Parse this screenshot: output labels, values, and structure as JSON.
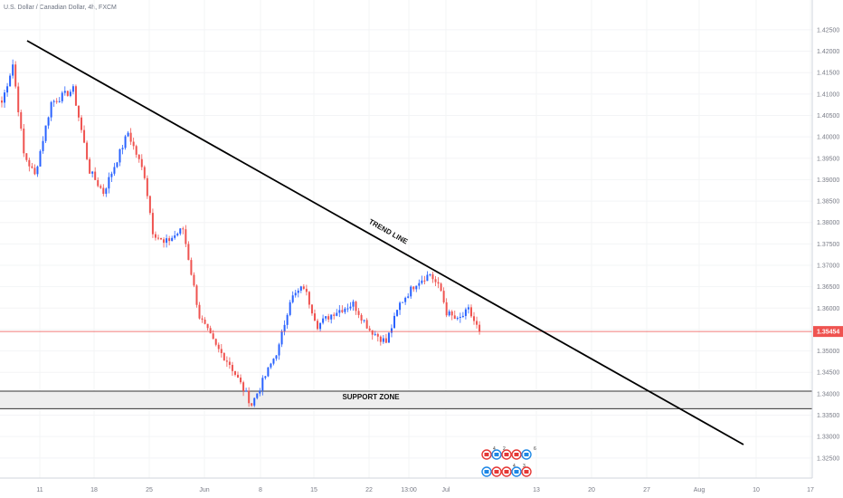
{
  "title": "U.S. Dollar / Canadian Dollar, 4h, FXCM",
  "colors": {
    "up": "#2962ff",
    "down": "#ef5350",
    "trend_line": "#000000",
    "current_price_line": "#ef5350",
    "support_fill": "#eeeeee",
    "support_border": "#333333",
    "axis_text": "#787b86"
  },
  "annotations": {
    "trend_line_label": "TREND LINE",
    "support_zone_label": "SUPPORT ZONE",
    "current_price": "1.35454"
  },
  "event_badges": [
    {
      "label": "4"
    },
    {
      "label": "2"
    },
    {
      "label": "6"
    },
    {
      "label": "4"
    },
    {
      "label": "3"
    }
  ],
  "chart_data": {
    "type": "candlestick",
    "symbol": "U.S. Dollar / Canadian Dollar",
    "interval": "4h",
    "source": "FXCM",
    "x_tick_labels": [
      "11",
      "18",
      "25",
      "Jun",
      "8",
      "15",
      "22",
      "13:00",
      "Jul",
      "13",
      "20",
      "27",
      "Aug",
      "10",
      "17"
    ],
    "y_ticks": [
      "1.42500",
      "1.42000",
      "1.41500",
      "1.41000",
      "1.40500",
      "1.40000",
      "1.39500",
      "1.39000",
      "1.38500",
      "1.38000",
      "1.37500",
      "1.37000",
      "1.36500",
      "1.36000",
      "1.35500",
      "1.35000",
      "1.34500",
      "1.34000",
      "1.33500",
      "1.33000",
      "1.32500"
    ],
    "ylim": [
      1.322,
      1.429
    ],
    "current_price": 1.35454,
    "trend_line": {
      "start": {
        "x_index": 5,
        "price": 1.4195
      },
      "end": {
        "x_index": 137,
        "price": 1.331
      },
      "label": "TREND LINE"
    },
    "support_zone": {
      "low": 1.3365,
      "high": 1.3406,
      "label": "SUPPORT ZONE"
    },
    "price_path": [
      [
        0,
        1.408
      ],
      [
        4,
        1.417
      ],
      [
        8,
        1.396
      ],
      [
        12,
        1.391
      ],
      [
        18,
        1.408
      ],
      [
        26,
        1.411
      ],
      [
        32,
        1.392
      ],
      [
        37,
        1.387
      ],
      [
        46,
        1.401
      ],
      [
        52,
        1.391
      ],
      [
        55,
        1.378
      ],
      [
        59,
        1.375
      ],
      [
        66,
        1.3785
      ],
      [
        72,
        1.358
      ],
      [
        78,
        1.351
      ],
      [
        83,
        1.347
      ],
      [
        91,
        1.3375
      ],
      [
        97,
        1.3455
      ],
      [
        101,
        1.351
      ],
      [
        105,
        1.362
      ],
      [
        110,
        1.365
      ],
      [
        115,
        1.356
      ],
      [
        121,
        1.359
      ],
      [
        128,
        1.361
      ],
      [
        134,
        1.355
      ],
      [
        140,
        1.352
      ],
      [
        145,
        1.361
      ],
      [
        151,
        1.366
      ],
      [
        156,
        1.368
      ],
      [
        160,
        1.364
      ],
      [
        162,
        1.359
      ],
      [
        166,
        1.357
      ],
      [
        170,
        1.3595
      ],
      [
        174,
        1.3545
      ]
    ]
  }
}
